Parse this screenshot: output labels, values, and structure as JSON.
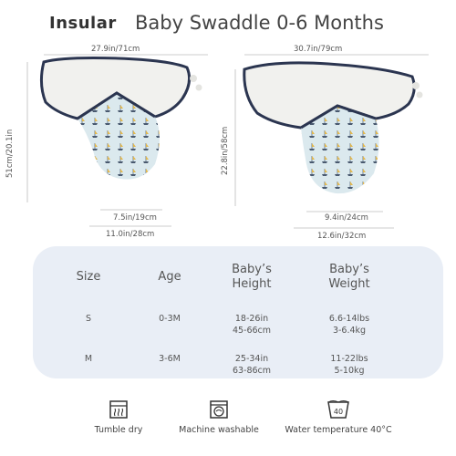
{
  "header": {
    "brand": "Insular",
    "title": "Baby Swaddle 0-6 Months"
  },
  "diagrams": {
    "left": {
      "top_width": "27.9in/71cm",
      "height": "51cm/20.1in",
      "bottom_inner": "7.5in/19cm",
      "bottom_outer": "11.0in/28cm"
    },
    "right": {
      "top_width": "30.7in/79cm",
      "height": "22.8in/58cm",
      "bottom_inner": "9.4in/24cm",
      "bottom_outer": "12.6in/32cm"
    }
  },
  "size_table": {
    "headers": {
      "size": "Size",
      "age": "Age",
      "height_l1": "Baby’s",
      "height_l2": "Height",
      "weight_l1": "Baby’s",
      "weight_l2": "Weight"
    },
    "rows": [
      {
        "size": "S",
        "age": "0-3M",
        "height_l1": "18-26in",
        "height_l2": "45-66cm",
        "weight_l1": "6.6-14lbs",
        "weight_l2": "3-6.4kg"
      },
      {
        "size": "M",
        "age": "3-6M",
        "height_l1": "25-34in",
        "height_l2": "63-86cm",
        "weight_l1": "11-22lbs",
        "weight_l2": "5-10kg"
      }
    ]
  },
  "care": [
    {
      "label": "Tumble dry",
      "icon": "tumble-dry-icon"
    },
    {
      "label": "Machine washable",
      "icon": "machine-wash-icon"
    },
    {
      "label": "Water temperature 40°C",
      "icon": "water-temperature-icon",
      "temp": "40"
    }
  ],
  "colors": {
    "trim": "#2b3550",
    "fleece": "#f1f1ee",
    "pouch": "#dbe9ee",
    "panel": "#e9eef6"
  }
}
